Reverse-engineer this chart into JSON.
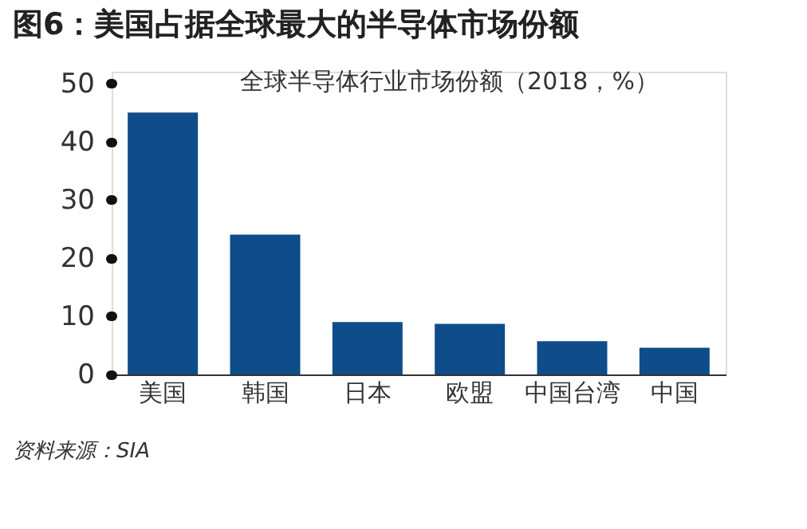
{
  "chart_data": {
    "type": "bar",
    "title": "图6：美国占据全球最大的半导体市场份额",
    "subtitle": "全球半导体行业市场份额（2018，%）",
    "categories": [
      "美国",
      "韩国",
      "日本",
      "欧盟",
      "中国台湾",
      "中国"
    ],
    "values": [
      45,
      24,
      9,
      8.7,
      5.7,
      4.6
    ],
    "color": "#0f4c8a",
    "ylim": [
      0,
      52
    ],
    "yticks": [
      0,
      10,
      20,
      30,
      40,
      50
    ],
    "grid": false,
    "annotations": [
      "资料来源：SIA"
    ]
  }
}
